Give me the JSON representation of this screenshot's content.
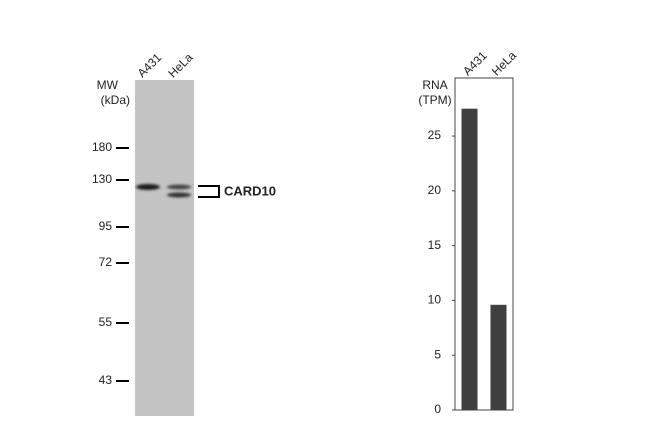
{
  "blot": {
    "mw_label": "MW",
    "unit_label": "(kDa)",
    "lanes": [
      "A431",
      "HeLa"
    ],
    "markers": [
      180,
      130,
      95,
      72,
      55,
      43
    ],
    "band_label": "CARD10"
  },
  "chart_data": {
    "type": "bar",
    "y_label": [
      "RNA",
      "(TPM)"
    ],
    "categories": [
      "A431",
      "HeLa"
    ],
    "values": [
      27.5,
      9.6
    ],
    "color": "#404040",
    "ylim": [
      0,
      30.3
    ],
    "yticks": [
      0,
      5,
      10,
      15,
      20,
      25
    ]
  }
}
